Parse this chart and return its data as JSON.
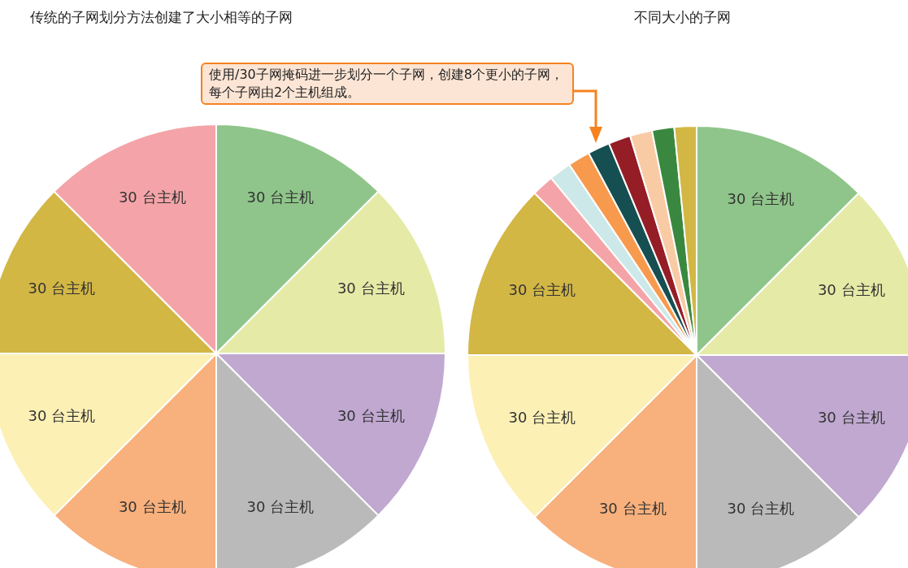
{
  "chart_data": [
    {
      "type": "pie",
      "title": "传统的子网划分方法创建了大小相等的子网",
      "categories": [
        null,
        null,
        null,
        null,
        null,
        null,
        null,
        null
      ],
      "values": [
        30,
        30,
        30,
        30,
        30,
        30,
        30,
        30
      ],
      "colors": [
        "#8fc58a",
        "#e5eaa7",
        "#c0a8d0",
        "#bababa",
        "#f8b07c",
        "#fdf0b5",
        "#d3b745",
        "#f4a4a8"
      ],
      "value_labels": [
        "30 台主机",
        "30 台主机",
        "30 台主机",
        "30 台主机",
        "30 台主机",
        "30 台主机",
        "30 台主机",
        "30 台主机"
      ]
    },
    {
      "type": "pie",
      "title": "不同大小的子网",
      "categories": [
        null,
        null,
        null,
        null,
        null,
        null,
        null,
        null,
        null,
        null,
        null,
        null,
        null,
        null,
        null
      ],
      "values": [
        30,
        30,
        30,
        30,
        30,
        30,
        30,
        3.75,
        3.75,
        3.75,
        3.75,
        3.75,
        3.75,
        3.75,
        3.75
      ],
      "colors": [
        "#8fc58a",
        "#e5eaa7",
        "#c0a8d0",
        "#bababa",
        "#f8b07c",
        "#fdf0b5",
        "#d3b745",
        "#f4a4a8",
        "#cde8e8",
        "#f89a4e",
        "#164f52",
        "#951d26",
        "#f9cba5",
        "#3a883f",
        "#d3b745"
      ],
      "value_labels": [
        "30 台主机",
        "30 台主机",
        "30 台主机",
        "30 台主机",
        "30 台主机",
        "30 台主机",
        "30 台主机",
        null,
        null,
        null,
        null,
        null,
        null,
        null,
        null
      ],
      "annotations": [
        "使用/30子网掩码进一步划分一个子网，创建8个更小的子网，每个子网由2个主机组成。"
      ]
    }
  ]
}
